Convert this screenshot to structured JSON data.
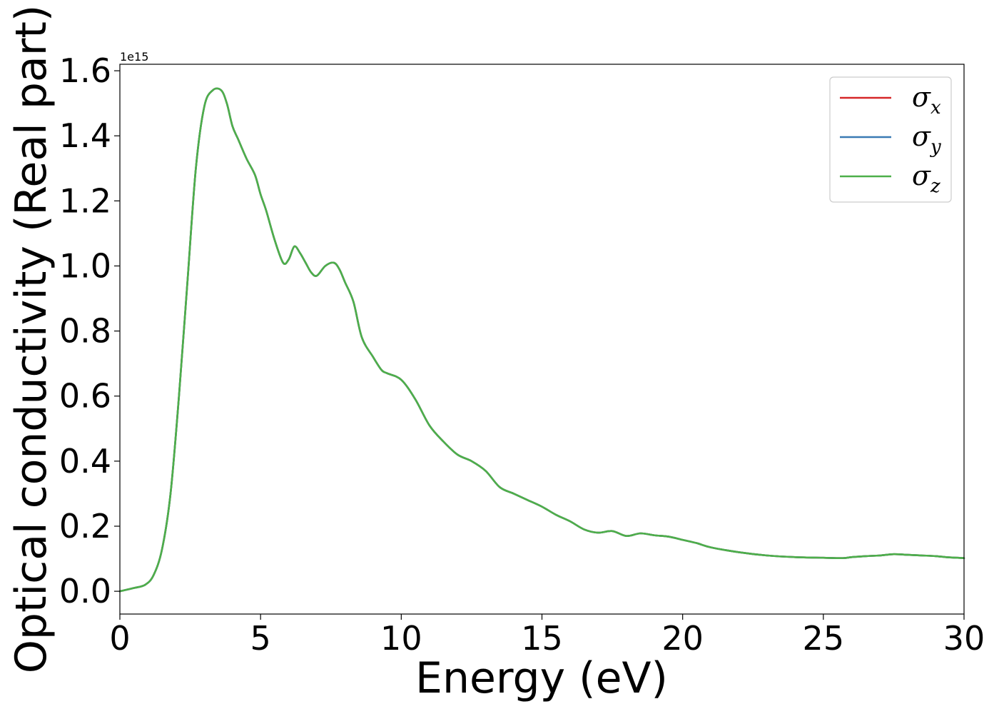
{
  "chart_data": {
    "type": "line",
    "xlabel": "Energy (eV)",
    "ylabel": "Optical conductivity (Real part)",
    "y_offset_label": "1e15",
    "y_scale": 1000000000000000.0,
    "xlim": [
      0,
      30
    ],
    "ylim": [
      -0.07,
      1.62
    ],
    "xticks": [
      0,
      5,
      10,
      15,
      20,
      25,
      30
    ],
    "xtick_labels": [
      "0",
      "5",
      "10",
      "15",
      "20",
      "25",
      "30"
    ],
    "yticks": [
      0.0,
      0.2,
      0.4,
      0.6,
      0.8,
      1.0,
      1.2,
      1.4,
      1.6
    ],
    "ytick_labels": [
      "0.0",
      "0.2",
      "0.4",
      "0.6",
      "0.8",
      "1.0",
      "1.2",
      "1.4",
      "1.6"
    ],
    "grid": false,
    "legend_position": "top-right",
    "x": [
      0,
      0.5,
      0.9,
      1.2,
      1.5,
      1.8,
      2.1,
      2.4,
      2.7,
      3.0,
      3.3,
      3.6,
      3.8,
      4.0,
      4.2,
      4.5,
      4.8,
      5.0,
      5.2,
      5.5,
      5.8,
      6.0,
      6.2,
      6.4,
      6.6,
      6.8,
      7.0,
      7.3,
      7.6,
      7.8,
      8.0,
      8.3,
      8.6,
      9.0,
      9.3,
      9.5,
      10.0,
      10.5,
      11.0,
      11.5,
      12.0,
      12.5,
      13.0,
      13.5,
      14.0,
      14.5,
      15.0,
      15.5,
      16.0,
      16.5,
      17.0,
      17.5,
      18.0,
      18.5,
      19.0,
      19.5,
      20.0,
      20.5,
      21.0,
      22.0,
      23.0,
      24.0,
      25.0,
      25.7,
      26.0,
      26.5,
      27.0,
      27.5,
      28.0,
      28.5,
      29.0,
      29.5,
      30.0
    ],
    "series": [
      {
        "name": "σx",
        "label_base": "σ",
        "label_sub": "x",
        "color": "#d62728",
        "y": [
          0.0,
          0.01,
          0.02,
          0.05,
          0.13,
          0.3,
          0.6,
          0.95,
          1.3,
          1.49,
          1.54,
          1.54,
          1.5,
          1.43,
          1.39,
          1.33,
          1.28,
          1.22,
          1.17,
          1.08,
          1.01,
          1.02,
          1.06,
          1.04,
          1.01,
          0.98,
          0.97,
          1.0,
          1.01,
          0.99,
          0.95,
          0.89,
          0.78,
          0.72,
          0.68,
          0.67,
          0.65,
          0.59,
          0.51,
          0.46,
          0.42,
          0.4,
          0.37,
          0.32,
          0.3,
          0.28,
          0.26,
          0.235,
          0.215,
          0.19,
          0.18,
          0.185,
          0.17,
          0.178,
          0.172,
          0.168,
          0.158,
          0.148,
          0.135,
          0.12,
          0.11,
          0.105,
          0.103,
          0.102,
          0.105,
          0.108,
          0.11,
          0.114,
          0.112,
          0.11,
          0.108,
          0.104,
          0.102
        ]
      },
      {
        "name": "σy",
        "label_base": "σ",
        "label_sub": "y",
        "color": "#3a7ab4",
        "y": [
          0.0,
          0.01,
          0.02,
          0.05,
          0.13,
          0.3,
          0.6,
          0.95,
          1.3,
          1.49,
          1.54,
          1.54,
          1.5,
          1.43,
          1.39,
          1.33,
          1.28,
          1.22,
          1.17,
          1.08,
          1.01,
          1.02,
          1.06,
          1.04,
          1.01,
          0.98,
          0.97,
          1.0,
          1.01,
          0.99,
          0.95,
          0.89,
          0.78,
          0.72,
          0.68,
          0.67,
          0.65,
          0.59,
          0.51,
          0.46,
          0.42,
          0.4,
          0.37,
          0.32,
          0.3,
          0.28,
          0.26,
          0.235,
          0.215,
          0.19,
          0.18,
          0.185,
          0.17,
          0.178,
          0.172,
          0.168,
          0.158,
          0.148,
          0.135,
          0.12,
          0.11,
          0.105,
          0.103,
          0.102,
          0.105,
          0.108,
          0.11,
          0.114,
          0.112,
          0.11,
          0.108,
          0.104,
          0.102
        ]
      },
      {
        "name": "σz",
        "label_base": "σ",
        "label_sub": "z",
        "color": "#4daf4a",
        "y": [
          0.0,
          0.01,
          0.02,
          0.05,
          0.13,
          0.3,
          0.6,
          0.95,
          1.3,
          1.49,
          1.54,
          1.54,
          1.5,
          1.43,
          1.39,
          1.33,
          1.28,
          1.22,
          1.17,
          1.08,
          1.01,
          1.02,
          1.06,
          1.04,
          1.01,
          0.98,
          0.97,
          1.0,
          1.01,
          0.99,
          0.95,
          0.89,
          0.78,
          0.72,
          0.68,
          0.67,
          0.65,
          0.59,
          0.51,
          0.46,
          0.42,
          0.4,
          0.37,
          0.32,
          0.3,
          0.28,
          0.26,
          0.235,
          0.215,
          0.19,
          0.18,
          0.185,
          0.17,
          0.178,
          0.172,
          0.168,
          0.158,
          0.148,
          0.135,
          0.12,
          0.11,
          0.105,
          0.103,
          0.102,
          0.105,
          0.108,
          0.11,
          0.114,
          0.112,
          0.11,
          0.108,
          0.104,
          0.102
        ]
      }
    ]
  }
}
